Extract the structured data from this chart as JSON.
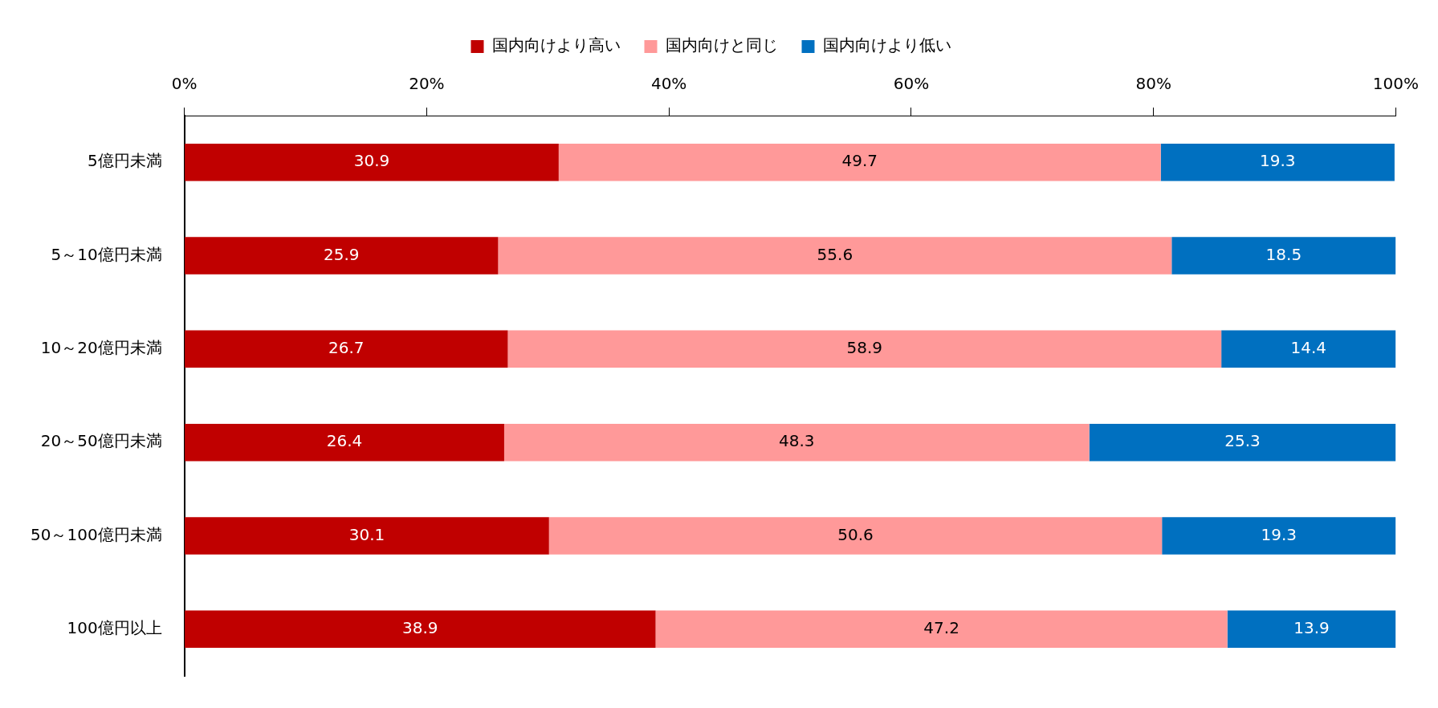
{
  "chart_data": {
    "type": "bar",
    "orientation": "horizontal",
    "stacked": true,
    "categories": [
      "5億円未満",
      "5～10億円未満",
      "10～20億円未満",
      "20～50億円未満",
      "50～100億円未満",
      "100億円以上"
    ],
    "series": [
      {
        "name": "国内向けより高い",
        "color": "#c00000",
        "values": [
          30.9,
          25.9,
          26.7,
          26.4,
          30.1,
          38.9
        ]
      },
      {
        "name": "国内向けと同じ",
        "color": "#ff9999",
        "values": [
          49.7,
          55.6,
          58.9,
          48.3,
          50.6,
          47.2
        ]
      },
      {
        "name": "国内向けより低い",
        "color": "#0070c0",
        "values": [
          19.3,
          18.5,
          14.4,
          25.3,
          19.3,
          13.9
        ]
      }
    ],
    "xlim": [
      0,
      100
    ],
    "xticks": [
      {
        "value": 0,
        "label": "0%"
      },
      {
        "value": 20,
        "label": "20%"
      },
      {
        "value": 40,
        "label": "40%"
      },
      {
        "value": 60,
        "label": "60%"
      },
      {
        "value": 80,
        "label": "80%"
      },
      {
        "value": 100,
        "label": "100%"
      }
    ],
    "grid": false,
    "legend": "top",
    "data_labels": true
  }
}
